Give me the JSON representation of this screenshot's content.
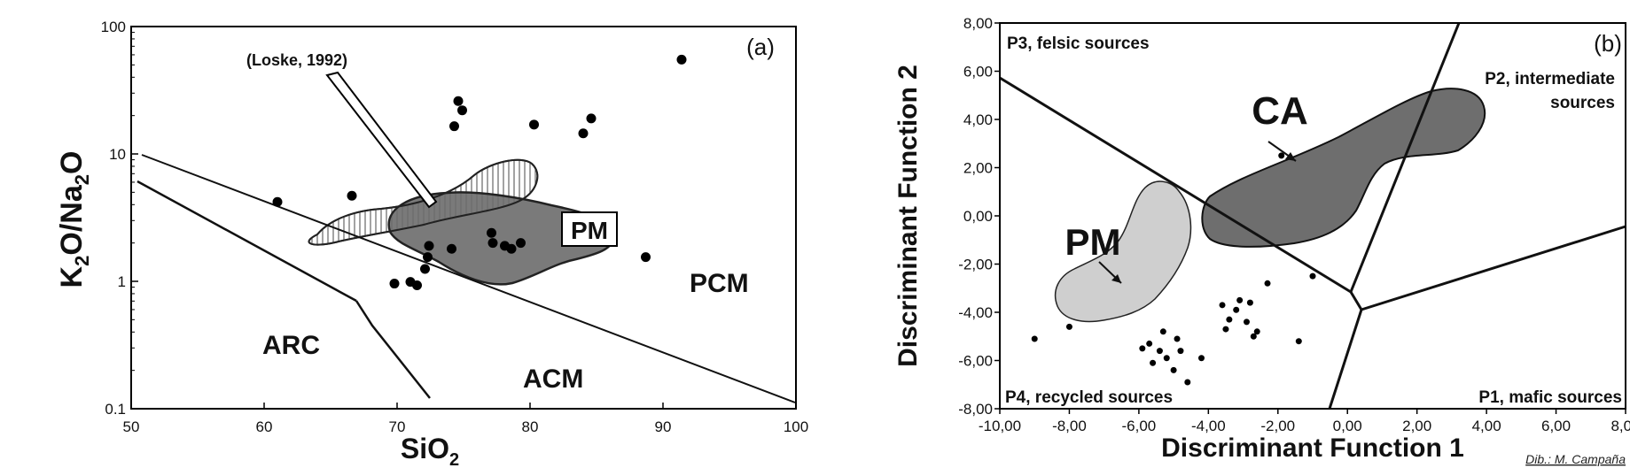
{
  "chart_data": [
    {
      "type": "scatter",
      "panel_label": "(a)",
      "xlabel": "SiO",
      "xlabel_sub": "2",
      "ylabel_parts": [
        "K",
        "2",
        "O/Na",
        "2",
        "O"
      ],
      "xlim": [
        50,
        100
      ],
      "ylim": [
        0.1,
        100
      ],
      "yscale": "log",
      "x_ticks": [
        "50",
        "60",
        "70",
        "80",
        "90",
        "100"
      ],
      "y_ticks": [
        "0.1",
        "1",
        "10",
        "100"
      ],
      "field_labels": [
        "ARC",
        "ACM",
        "PCM"
      ],
      "region_labels": [
        "PM"
      ],
      "annotation": "(Loske, 1992)",
      "points": [
        {
          "x": 61.0,
          "y": 4.2
        },
        {
          "x": 66.6,
          "y": 4.7
        },
        {
          "x": 69.8,
          "y": 0.96
        },
        {
          "x": 71.0,
          "y": 0.99
        },
        {
          "x": 71.5,
          "y": 0.93
        },
        {
          "x": 72.1,
          "y": 1.25
        },
        {
          "x": 72.3,
          "y": 1.55
        },
        {
          "x": 72.4,
          "y": 1.9
        },
        {
          "x": 74.1,
          "y": 1.8
        },
        {
          "x": 74.3,
          "y": 16.5
        },
        {
          "x": 74.6,
          "y": 26
        },
        {
          "x": 74.9,
          "y": 22
        },
        {
          "x": 77.1,
          "y": 2.4
        },
        {
          "x": 77.2,
          "y": 2.0
        },
        {
          "x": 78.1,
          "y": 1.9
        },
        {
          "x": 78.6,
          "y": 1.8
        },
        {
          "x": 79.3,
          "y": 2.0
        },
        {
          "x": 80.3,
          "y": 17
        },
        {
          "x": 84.0,
          "y": 14.5
        },
        {
          "x": 84.6,
          "y": 19
        },
        {
          "x": 88.7,
          "y": 1.55
        },
        {
          "x": 91.4,
          "y": 55
        }
      ]
    },
    {
      "type": "scatter",
      "panel_label": "(b)",
      "xlabel": "Discriminant Function 1",
      "ylabel": "Discriminant Function 2",
      "xlim": [
        -10,
        8
      ],
      "ylim": [
        -8,
        8
      ],
      "x_ticks": [
        "-10,00",
        "-8,00",
        "-6,00",
        "-4,00",
        "-2,00",
        "0,00",
        "2,00",
        "4,00",
        "6,00",
        "8,00"
      ],
      "y_ticks": [
        "-8,00",
        "-6,00",
        "-4,00",
        "-2,00",
        "0,00",
        "2,00",
        "4,00",
        "6,00",
        "8,00"
      ],
      "field_labels": [
        "P3, felsic sources",
        "P2, intermediate",
        "sources",
        "P4, recycled sources",
        "P1, mafic sources"
      ],
      "region_labels": [
        "CA",
        "PM"
      ],
      "points": [
        {
          "x": -9.0,
          "y": -5.1
        },
        {
          "x": -8.0,
          "y": -4.6
        },
        {
          "x": -5.9,
          "y": -5.5
        },
        {
          "x": -5.7,
          "y": -5.3
        },
        {
          "x": -5.4,
          "y": -5.6
        },
        {
          "x": -5.6,
          "y": -6.1
        },
        {
          "x": -5.2,
          "y": -5.9
        },
        {
          "x": -4.8,
          "y": -5.6
        },
        {
          "x": -5.0,
          "y": -6.4
        },
        {
          "x": -5.3,
          "y": -4.8
        },
        {
          "x": -4.9,
          "y": -5.1
        },
        {
          "x": -4.6,
          "y": -6.9
        },
        {
          "x": -4.2,
          "y": -5.9
        },
        {
          "x": -3.6,
          "y": -3.7
        },
        {
          "x": -3.5,
          "y": -4.7
        },
        {
          "x": -3.4,
          "y": -4.3
        },
        {
          "x": -3.2,
          "y": -3.9
        },
        {
          "x": -3.1,
          "y": -3.5
        },
        {
          "x": -2.9,
          "y": -4.4
        },
        {
          "x": -2.8,
          "y": -3.6
        },
        {
          "x": -2.7,
          "y": -5.0
        },
        {
          "x": -2.6,
          "y": -4.8
        },
        {
          "x": -2.3,
          "y": -2.8
        },
        {
          "x": -1.4,
          "y": -5.2
        },
        {
          "x": -1.0,
          "y": -2.5
        },
        {
          "x": -1.9,
          "y": 2.5
        }
      ]
    }
  ],
  "credit": "Dib.: M. Campaña"
}
